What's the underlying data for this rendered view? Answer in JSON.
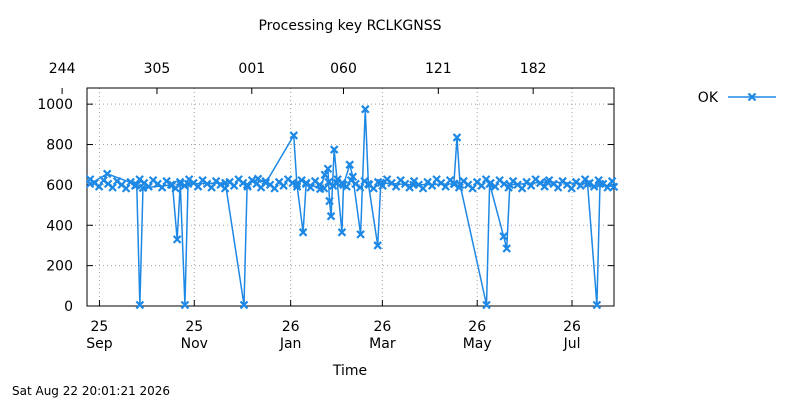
{
  "chart_data": {
    "type": "line",
    "title": "Processing key RCLKGNSS",
    "xlabel": "Time",
    "ylabel": "",
    "ylim": [
      0,
      1080
    ],
    "yticks": [
      "0",
      "200",
      "400",
      "600",
      "800",
      "1000"
    ],
    "ytick_values": [
      0,
      200,
      400,
      600,
      800,
      1000
    ],
    "xlim": [
      "2025-09-17",
      "2026-08-22"
    ],
    "xticks": [
      {
        "date": "2025-09-25",
        "day": "25",
        "month": "Sep"
      },
      {
        "date": "2025-11-25",
        "day": "25",
        "month": "Nov"
      },
      {
        "date": "2026-01-26",
        "day": "26",
        "month": "Jan"
      },
      {
        "date": "2026-03-26",
        "day": "26",
        "month": "Mar"
      },
      {
        "date": "2026-05-26",
        "day": "26",
        "month": "May"
      },
      {
        "date": "2026-07-26",
        "day": "26",
        "month": "Jul"
      }
    ],
    "x2ticks": [
      {
        "date": "2025-09-01",
        "label": "244"
      },
      {
        "date": "2025-11-01",
        "label": "305"
      },
      {
        "date": "2026-01-01",
        "label": "001"
      },
      {
        "date": "2026-03-01",
        "label": "060"
      },
      {
        "date": "2026-05-01",
        "label": "121"
      },
      {
        "date": "2026-07-01",
        "label": "182"
      }
    ],
    "grid": true,
    "legend": "top-right",
    "series": [
      {
        "name": "OK",
        "color": "#1e88e5",
        "marker": "x",
        "baseline": 605,
        "points": [
          [
            "2025-09-19",
            605
          ],
          [
            "2025-09-30",
            655
          ],
          [
            "2025-10-19",
            600
          ],
          [
            "2025-10-21",
            5
          ],
          [
            "2025-10-23",
            585
          ],
          [
            "2025-11-11",
            600
          ],
          [
            "2025-11-14",
            330
          ],
          [
            "2025-11-16",
            605
          ],
          [
            "2025-11-19",
            5
          ],
          [
            "2025-11-21",
            605
          ],
          [
            "2025-12-15",
            610
          ],
          [
            "2025-12-27",
            5
          ],
          [
            "2025-12-29",
            600
          ],
          [
            "2026-01-05",
            630
          ],
          [
            "2026-01-10",
            610
          ],
          [
            "2026-01-28",
            845
          ],
          [
            "2026-01-30",
            605
          ],
          [
            "2026-02-03",
            365
          ],
          [
            "2026-02-05",
            610
          ],
          [
            "2026-02-14",
            580
          ],
          [
            "2026-02-17",
            650
          ],
          [
            "2026-02-19",
            680
          ],
          [
            "2026-02-20",
            520
          ],
          [
            "2026-02-21",
            445
          ],
          [
            "2026-02-23",
            775
          ],
          [
            "2026-02-25",
            610
          ],
          [
            "2026-02-28",
            365
          ],
          [
            "2026-03-01",
            600
          ],
          [
            "2026-03-05",
            700
          ],
          [
            "2026-03-07",
            640
          ],
          [
            "2026-03-12",
            355
          ],
          [
            "2026-03-15",
            975
          ],
          [
            "2026-03-17",
            605
          ],
          [
            "2026-03-23",
            300
          ],
          [
            "2026-03-25",
            610
          ],
          [
            "2026-04-15",
            600
          ],
          [
            "2026-05-11",
            605
          ],
          [
            "2026-05-13",
            835
          ],
          [
            "2026-05-15",
            600
          ],
          [
            "2026-06-01",
            5
          ],
          [
            "2026-06-03",
            605
          ],
          [
            "2026-06-12",
            345
          ],
          [
            "2026-06-14",
            285
          ],
          [
            "2026-06-16",
            600
          ],
          [
            "2026-07-10",
            615
          ],
          [
            "2026-08-05",
            605
          ],
          [
            "2026-08-11",
            5
          ],
          [
            "2026-08-13",
            605
          ],
          [
            "2026-08-22",
            590
          ]
        ]
      }
    ]
  },
  "timestamp": "Sat Aug 22 20:01:21 2026"
}
